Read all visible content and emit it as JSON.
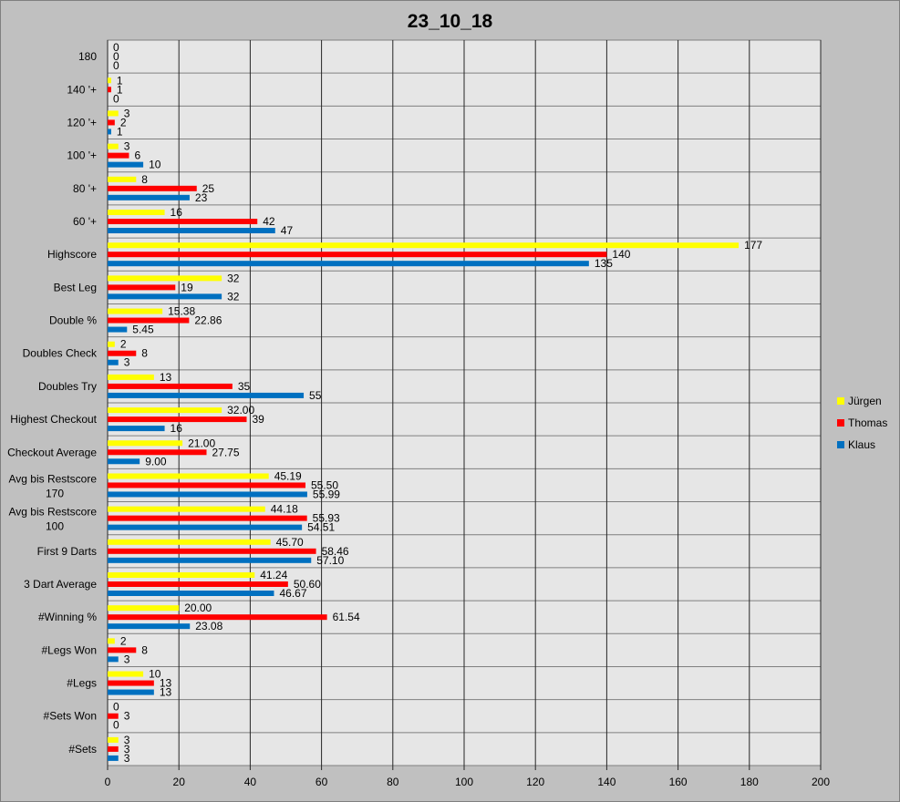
{
  "chart_data": {
    "type": "bar",
    "orientation": "horizontal",
    "title": "23_10_18",
    "categories": [
      "180",
      "140 '+",
      "120 '+",
      "100 '+",
      "80 '+",
      "60 '+",
      "Highscore",
      "Best Leg",
      "Double %",
      "Doubles Check",
      "Doubles Try",
      "Highest Checkout",
      "Checkout Average",
      "Avg bis Restscore 170",
      "Avg bis Restscore 100",
      "First 9 Darts",
      "3 Dart Average",
      "#Winning %",
      "#Legs Won",
      "#Legs",
      "#Sets Won",
      "#Sets"
    ],
    "series": [
      {
        "name": "Jürgen",
        "color": "#ffff00",
        "values": [
          0,
          1,
          3,
          3,
          8,
          16,
          177,
          32,
          15.38,
          2,
          13,
          32.0,
          21.0,
          45.19,
          44.18,
          45.7,
          41.24,
          20.0,
          2,
          10,
          0,
          3
        ],
        "labels": [
          "0",
          "1",
          "3",
          "3",
          "8",
          "16",
          "177",
          "32",
          "15.38",
          "2",
          "13",
          "32.00",
          "21.00",
          "45.19",
          "44.18",
          "45.70",
          "41.24",
          "20.00",
          "2",
          "10",
          "0",
          "3"
        ]
      },
      {
        "name": "Thomas",
        "color": "#ff0000",
        "values": [
          0,
          1,
          2,
          6,
          25,
          42,
          140,
          19,
          22.86,
          8,
          35,
          39,
          27.75,
          55.5,
          55.93,
          58.46,
          50.6,
          61.54,
          8,
          13,
          3,
          3
        ],
        "labels": [
          "0",
          "1",
          "2",
          "6",
          "25",
          "42",
          "140",
          "19",
          "22.86",
          "8",
          "35",
          "39",
          "27.75",
          "55.50",
          "55.93",
          "58.46",
          "50.60",
          "61.54",
          "8",
          "13",
          "3",
          "3"
        ]
      },
      {
        "name": "Klaus",
        "color": "#0070c0",
        "values": [
          0,
          0,
          1,
          10,
          23,
          47,
          135,
          32,
          5.45,
          3,
          55,
          16,
          9.0,
          55.99,
          54.51,
          57.1,
          46.67,
          23.08,
          3,
          13,
          0,
          3
        ],
        "labels": [
          "0",
          "0",
          "1",
          "10",
          "23",
          "47",
          "135",
          "32",
          "5.45",
          "3",
          "55",
          "16",
          "9.00",
          "55.99",
          "54.51",
          "57.10",
          "46.67",
          "23.08",
          "3",
          "13",
          "0",
          "3"
        ]
      }
    ],
    "xlim": [
      0,
      200
    ],
    "xticks": [
      "0",
      "20",
      "40",
      "60",
      "80",
      "100",
      "120",
      "140",
      "160",
      "180",
      "200"
    ],
    "grid": true,
    "legend_position": "right",
    "plot_background": "#e6e6e6",
    "frame_background": "#c0c0c0"
  }
}
